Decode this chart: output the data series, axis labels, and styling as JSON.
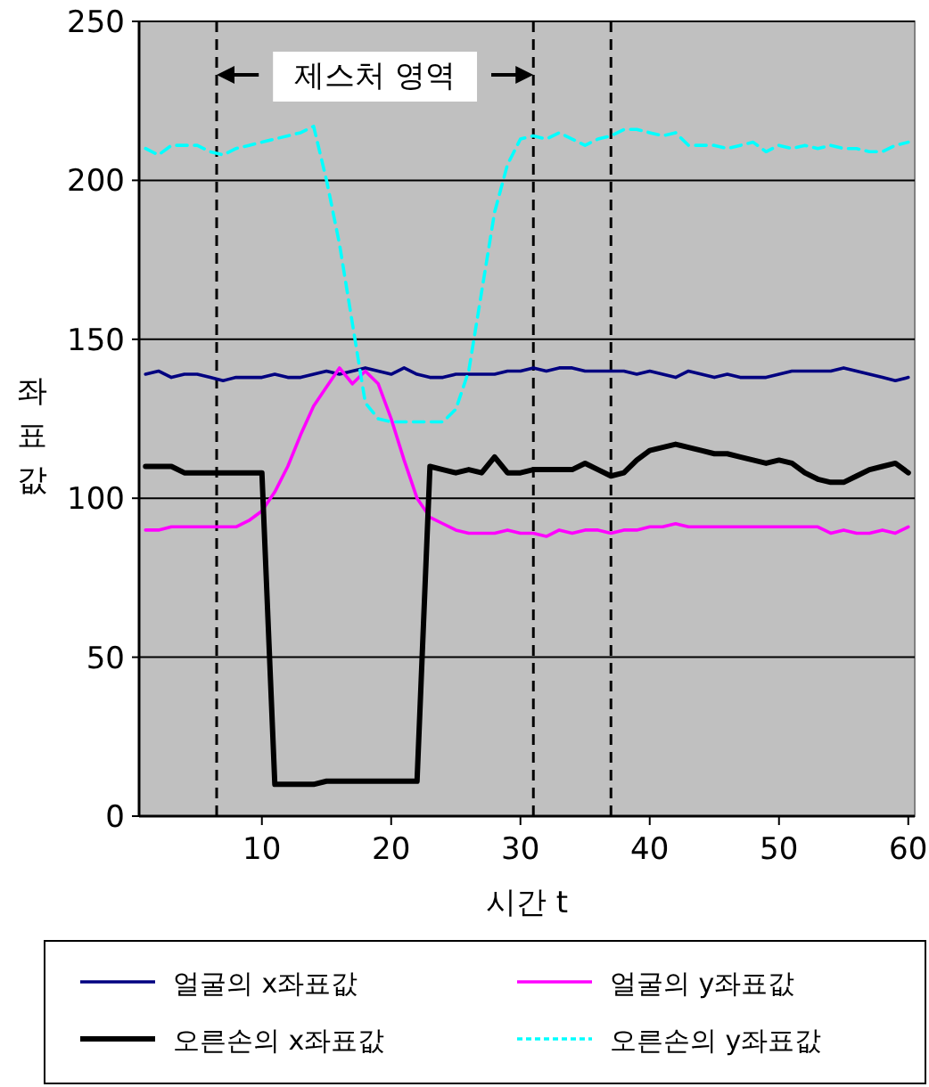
{
  "chart_data": {
    "type": "line",
    "xlabel": "시간 t",
    "ylabel": "좌표값",
    "x": [
      1,
      2,
      3,
      4,
      5,
      6,
      7,
      8,
      9,
      10,
      11,
      12,
      13,
      14,
      15,
      16,
      17,
      18,
      19,
      20,
      21,
      22,
      23,
      24,
      25,
      26,
      27,
      28,
      29,
      30,
      31,
      32,
      33,
      34,
      35,
      36,
      37,
      38,
      39,
      40,
      41,
      42,
      43,
      44,
      45,
      46,
      47,
      48,
      49,
      50,
      51,
      52,
      53,
      54,
      55,
      56,
      57,
      58,
      59,
      60
    ],
    "xlim": [
      0.5,
      60.5
    ],
    "xticks": [
      10,
      20,
      30,
      40,
      50,
      60
    ],
    "ylim": [
      0,
      250
    ],
    "yticks": [
      0,
      50,
      100,
      150,
      200,
      250
    ],
    "grid": "y",
    "legend": "bottom",
    "series": [
      {
        "name": "얼굴의 x좌표값",
        "color": "#000080",
        "values": [
          139,
          140,
          138,
          139,
          139,
          138,
          137,
          138,
          138,
          138,
          139,
          138,
          138,
          139,
          140,
          139,
          140,
          141,
          140,
          139,
          141,
          139,
          138,
          138,
          139,
          139,
          139,
          139,
          140,
          140,
          141,
          140,
          141,
          141,
          140,
          140,
          140,
          140,
          139,
          140,
          139,
          138,
          140,
          139,
          138,
          139,
          138,
          138,
          138,
          139,
          140,
          140,
          140,
          140,
          141,
          140,
          139,
          138,
          137,
          138
        ]
      },
      {
        "name": "얼굴의 y좌표값",
        "color": "#ff00ff",
        "values": [
          90,
          90,
          91,
          91,
          91,
          91,
          91,
          91,
          93,
          96,
          102,
          110,
          120,
          129,
          135,
          141,
          136,
          140,
          136,
          125,
          112,
          100,
          94,
          92,
          90,
          89,
          89,
          89,
          90,
          89,
          89,
          88,
          90,
          89,
          90,
          90,
          89,
          90,
          90,
          91,
          91,
          92,
          91,
          91,
          91,
          91,
          91,
          91,
          91,
          91,
          91,
          91,
          91,
          89,
          90,
          89,
          89,
          90,
          89,
          91
        ]
      },
      {
        "name": "오른손의 x좌표값",
        "color": "#000000",
        "values": [
          110,
          110,
          110,
          108,
          108,
          108,
          108,
          108,
          108,
          108,
          10,
          10,
          10,
          10,
          11,
          11,
          11,
          11,
          11,
          11,
          11,
          11,
          110,
          109,
          108,
          109,
          108,
          113,
          108,
          108,
          109,
          109,
          109,
          109,
          111,
          109,
          107,
          108,
          112,
          115,
          116,
          117,
          116,
          115,
          114,
          114,
          113,
          112,
          111,
          112,
          111,
          108,
          106,
          105,
          105,
          107,
          109,
          110,
          111,
          108
        ]
      },
      {
        "name": "오른손의 y좌표값",
        "color": "#00ffff",
        "line_style": "dashed",
        "values": [
          210,
          208,
          211,
          211,
          211,
          209,
          208,
          210,
          211,
          212,
          213,
          214,
          215,
          217,
          200,
          180,
          155,
          130,
          125,
          124,
          124,
          124,
          124,
          124,
          128,
          140,
          165,
          190,
          205,
          213,
          214,
          213,
          215,
          213,
          211,
          213,
          214,
          216,
          216,
          215,
          214,
          215,
          211,
          211,
          211,
          210,
          211,
          212,
          209,
          211,
          210,
          211,
          210,
          211,
          210,
          210,
          209,
          209,
          211,
          212
        ]
      }
    ],
    "ref_lines": [
      {
        "axis": "x",
        "value": 6.5,
        "line_style": "dashed",
        "color": "#000000"
      },
      {
        "axis": "x",
        "value": 31,
        "line_style": "dashed",
        "color": "#000000"
      },
      {
        "axis": "x",
        "value": 37,
        "line_style": "dashed",
        "color": "#000000"
      }
    ],
    "annotations": [
      "제스처 영역"
    ]
  }
}
